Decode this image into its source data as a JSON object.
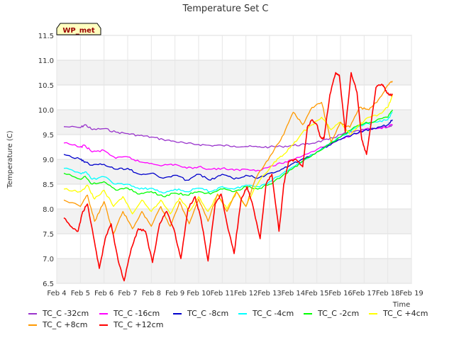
{
  "chart_data": {
    "type": "line",
    "title": "Temperature Set C",
    "xlabel": "Time",
    "ylabel": "Temperature (C)",
    "ylim": [
      6.5,
      11.5
    ],
    "yticks": [
      6.5,
      7.0,
      7.5,
      8.0,
      8.5,
      9.0,
      9.5,
      10.0,
      10.5,
      11.0,
      11.5
    ],
    "xlim": [
      0,
      15
    ],
    "xticks": [
      0,
      1,
      2,
      3,
      4,
      5,
      6,
      7,
      8,
      9,
      10,
      11,
      12,
      13,
      14,
      15
    ],
    "xtick_labels": [
      "Feb 4",
      "Feb 5",
      "Feb 6",
      "Feb 7",
      "Feb 8",
      "Feb 9",
      "Feb 10",
      "Feb 11",
      "Feb 12",
      "Feb 13",
      "Feb 14",
      "Feb 15",
      "Feb 16",
      "Feb 17",
      "Feb 18",
      "Feb 19"
    ],
    "annotation": "WP_met",
    "grid": true,
    "legend_position": "bottom",
    "series": [
      {
        "name": "TC_C -32cm",
        "color": "#9933cc",
        "x": [
          0.3,
          1,
          1.2,
          1.5,
          2,
          2.5,
          3,
          3.5,
          4,
          4.5,
          5,
          5.5,
          6,
          6.5,
          7,
          7.5,
          8,
          8.5,
          9,
          9.5,
          10,
          10.5,
          11,
          11.5,
          12,
          12.5,
          13,
          13.5,
          14,
          14.2
        ],
        "y": [
          9.66,
          9.64,
          9.7,
          9.6,
          9.62,
          9.55,
          9.52,
          9.48,
          9.45,
          9.4,
          9.36,
          9.32,
          9.3,
          9.28,
          9.28,
          9.27,
          9.26,
          9.25,
          9.25,
          9.26,
          9.28,
          9.3,
          9.35,
          9.4,
          9.5,
          9.55,
          9.6,
          9.62,
          9.65,
          9.7
        ]
      },
      {
        "name": "TC_C -16cm",
        "color": "#ff00ff",
        "x": [
          0.3,
          1,
          1.2,
          1.5,
          2,
          2.5,
          3,
          3.5,
          4,
          4.5,
          5,
          5.5,
          6,
          6.5,
          7,
          7.5,
          8,
          8.5,
          9,
          9.5,
          10,
          10.5,
          11,
          11.5,
          12,
          12.5,
          13,
          13.5,
          14,
          14.2
        ],
        "y": [
          9.33,
          9.25,
          9.28,
          9.15,
          9.18,
          9.02,
          9.05,
          8.95,
          8.92,
          8.88,
          8.9,
          8.82,
          8.85,
          8.8,
          8.82,
          8.78,
          8.8,
          8.78,
          8.85,
          8.92,
          9.0,
          9.1,
          9.2,
          9.3,
          9.4,
          9.5,
          9.6,
          9.62,
          9.65,
          9.7
        ]
      },
      {
        "name": "TC_C -8cm",
        "color": "#0000cc",
        "x": [
          0.3,
          1,
          1.2,
          1.5,
          2,
          2.5,
          3,
          3.5,
          4,
          4.5,
          5,
          5.5,
          6,
          6.5,
          7,
          7.5,
          8,
          8.5,
          9,
          9.5,
          10,
          10.5,
          11,
          11.5,
          12,
          12.5,
          13,
          13.5,
          14,
          14.2
        ],
        "y": [
          9.1,
          9.0,
          8.95,
          8.88,
          8.9,
          8.8,
          8.82,
          8.7,
          8.72,
          8.62,
          8.68,
          8.58,
          8.7,
          8.58,
          8.7,
          8.6,
          8.68,
          8.62,
          8.72,
          8.8,
          8.92,
          9.02,
          9.15,
          9.28,
          9.4,
          9.5,
          9.58,
          9.62,
          9.7,
          9.8
        ]
      },
      {
        "name": "TC_C -4cm",
        "color": "#00ffff",
        "x": [
          0.3,
          1,
          1.2,
          1.5,
          2,
          2.5,
          3,
          3.5,
          4,
          4.5,
          5,
          5.5,
          6,
          6.5,
          7,
          7.5,
          8,
          8.5,
          9,
          9.5,
          10,
          10.5,
          11,
          11.5,
          12,
          12.5,
          13,
          13.5,
          14,
          14.2
        ],
        "y": [
          8.82,
          8.72,
          8.75,
          8.6,
          8.65,
          8.5,
          8.5,
          8.4,
          8.42,
          8.32,
          8.4,
          8.35,
          8.42,
          8.35,
          8.45,
          8.4,
          8.48,
          8.45,
          8.55,
          8.7,
          8.85,
          9.0,
          9.15,
          9.3,
          9.45,
          9.6,
          9.7,
          9.75,
          9.8,
          9.95
        ]
      },
      {
        "name": "TC_C -2cm",
        "color": "#00ff00",
        "x": [
          0.3,
          1,
          1.2,
          1.5,
          2,
          2.5,
          3,
          3.5,
          4,
          4.5,
          5,
          5.5,
          6,
          6.5,
          7,
          7.5,
          8,
          8.5,
          9,
          9.5,
          10,
          10.5,
          11,
          11.5,
          12,
          12.5,
          13,
          13.5,
          14,
          14.2
        ],
        "y": [
          8.72,
          8.6,
          8.66,
          8.5,
          8.55,
          8.38,
          8.42,
          8.3,
          8.35,
          8.25,
          8.32,
          8.28,
          8.35,
          8.3,
          8.4,
          8.35,
          8.45,
          8.4,
          8.5,
          8.65,
          8.82,
          9.0,
          9.15,
          9.3,
          9.45,
          9.62,
          9.72,
          9.78,
          9.85,
          10.0
        ]
      },
      {
        "name": "TC_C +4cm",
        "color": "#ffff00",
        "x": [
          0.3,
          1,
          1.3,
          1.6,
          2,
          2.4,
          2.8,
          3.2,
          3.6,
          4,
          4.4,
          4.8,
          5.2,
          5.6,
          6,
          6.4,
          6.8,
          7.2,
          7.6,
          8,
          8.4,
          8.8,
          9.2,
          9.6,
          10,
          10.4,
          10.8,
          11.2,
          11.6,
          12,
          12.4,
          12.8,
          13.2,
          13.6,
          14,
          14.2
        ],
        "y": [
          8.4,
          8.35,
          8.48,
          8.2,
          8.38,
          8.05,
          8.25,
          7.9,
          8.18,
          7.95,
          8.18,
          7.9,
          8.22,
          7.95,
          8.25,
          7.95,
          8.3,
          8.0,
          8.35,
          8.05,
          8.45,
          8.7,
          8.95,
          9.1,
          9.3,
          9.55,
          9.7,
          9.85,
          9.6,
          9.75,
          9.5,
          9.7,
          9.85,
          9.9,
          10.05,
          10.3
        ]
      },
      {
        "name": "TC_C +8cm",
        "color": "#ff9900",
        "x": [
          0.3,
          1,
          1.3,
          1.6,
          2,
          2.4,
          2.8,
          3.2,
          3.6,
          4,
          4.4,
          4.8,
          5.2,
          5.6,
          6,
          6.4,
          6.8,
          7.2,
          7.6,
          8,
          8.4,
          8.8,
          9.2,
          9.6,
          10,
          10.4,
          10.8,
          11.2,
          11.6,
          12,
          12.4,
          12.8,
          13.2,
          13.6,
          14,
          14.2
        ],
        "y": [
          8.18,
          8.05,
          8.28,
          7.75,
          8.15,
          7.5,
          7.95,
          7.6,
          7.95,
          7.65,
          8.05,
          7.65,
          8.15,
          7.7,
          8.2,
          7.75,
          8.3,
          7.95,
          8.35,
          8.05,
          8.6,
          8.9,
          9.2,
          9.5,
          9.95,
          9.7,
          10.05,
          10.15,
          9.35,
          9.75,
          9.65,
          10.05,
          10.0,
          10.2,
          10.5,
          10.58
        ]
      },
      {
        "name": "TC_C +12cm",
        "color": "#ff0000",
        "x": [
          0.3,
          0.7,
          0.9,
          1.1,
          1.3,
          1.55,
          1.8,
          2.05,
          2.3,
          2.6,
          2.85,
          3.15,
          3.45,
          3.75,
          4.05,
          4.35,
          4.65,
          4.95,
          5.25,
          5.55,
          5.85,
          6.1,
          6.4,
          6.7,
          6.95,
          7.2,
          7.5,
          7.8,
          8.05,
          8.3,
          8.6,
          8.85,
          9.1,
          9.4,
          9.6,
          9.8,
          10.1,
          10.4,
          10.6,
          10.8,
          11.0,
          11.15,
          11.3,
          11.55,
          11.8,
          11.95,
          12.2,
          12.45,
          12.7,
          12.9,
          13.1,
          13.3,
          13.5,
          13.65,
          13.8,
          13.95,
          14.05,
          14.2
        ],
        "y": [
          7.82,
          7.6,
          7.55,
          7.95,
          8.1,
          7.45,
          6.8,
          7.4,
          7.7,
          6.95,
          6.55,
          7.2,
          7.6,
          7.55,
          6.92,
          7.7,
          7.95,
          7.6,
          7.0,
          8.0,
          8.25,
          7.8,
          6.95,
          8.1,
          8.3,
          7.7,
          7.1,
          8.2,
          8.45,
          8.05,
          7.4,
          8.5,
          8.7,
          7.55,
          8.5,
          8.95,
          9.0,
          8.85,
          9.65,
          9.8,
          9.7,
          9.45,
          9.42,
          10.3,
          10.75,
          10.7,
          9.55,
          10.75,
          10.35,
          9.4,
          9.1,
          9.75,
          10.45,
          10.5,
          10.5,
          10.35,
          10.3,
          10.3
        ]
      }
    ]
  }
}
